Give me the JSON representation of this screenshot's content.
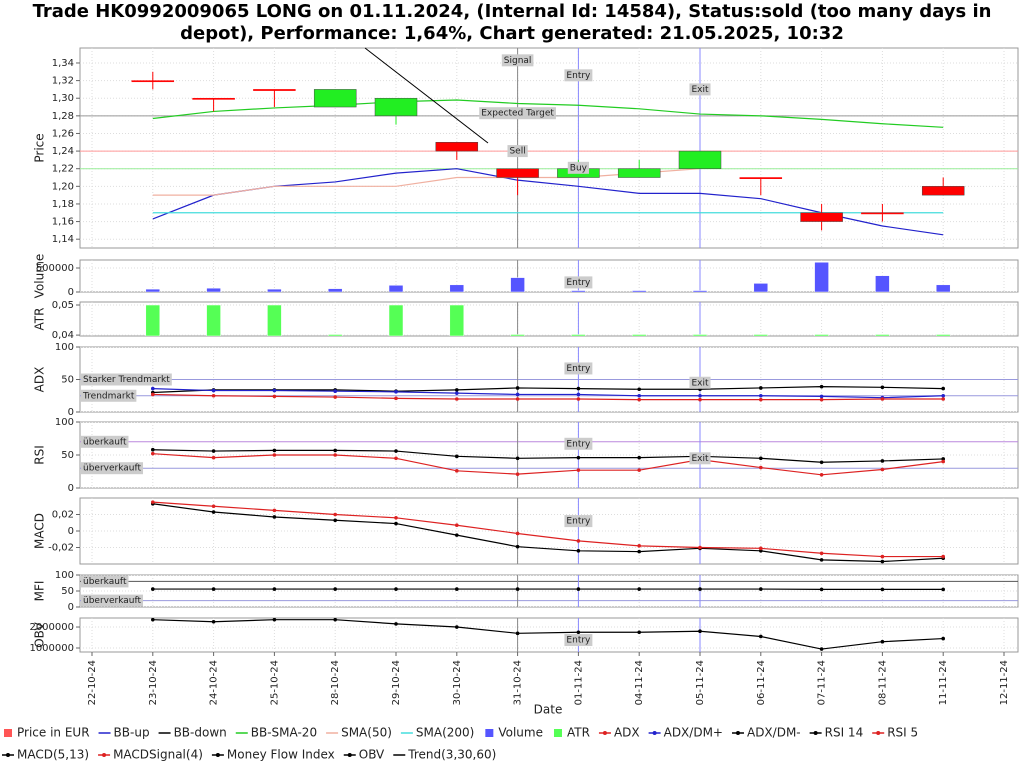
{
  "title": [
    "Trade HK0992009065 LONG on 01.11.2024, (Internal Id: 14584), Status:sold (too many days in",
    "depot), Performance: 1,64%, Chart generated: 21.05.2025, 10:32"
  ],
  "x_label": "Date",
  "categories": [
    "22-10-24",
    "23-10-24",
    "24-10-24",
    "25-10-24",
    "28-10-24",
    "29-10-24",
    "30-10-24",
    "31-10-24",
    "01-11-24",
    "04-11-24",
    "05-11-24",
    "06-11-24",
    "07-11-24",
    "08-11-24",
    "11-11-24",
    "12-11-24"
  ],
  "markers": [
    {
      "date": "31-10-24",
      "color": "#888888"
    },
    {
      "date": "01-11-24",
      "color": "#8888ff"
    },
    {
      "date": "05-11-24",
      "color": "#8888ff"
    }
  ],
  "panels": [
    {
      "type": "candlestick",
      "y_label": "Price",
      "ylim": [
        1.13,
        1.357
      ],
      "yticks": [
        {
          "value": 1.14,
          "label": "1,14"
        },
        {
          "value": 1.16,
          "label": "1,16"
        },
        {
          "value": 1.18,
          "label": "1,18"
        },
        {
          "value": 1.2,
          "label": "1,20"
        },
        {
          "value": 1.22,
          "label": "1,22"
        },
        {
          "value": 1.24,
          "label": "1,24"
        },
        {
          "value": 1.26,
          "label": "1,26"
        },
        {
          "value": 1.28,
          "label": "1,28"
        },
        {
          "value": 1.3,
          "label": "1,30"
        },
        {
          "value": 1.32,
          "label": "1,32"
        },
        {
          "value": 1.34,
          "label": "1,34"
        }
      ],
      "up_color": "#22ee22",
      "down_color": "#ff0000",
      "open": [
        null,
        1.32,
        1.3,
        1.31,
        1.29,
        1.28,
        1.25,
        1.22,
        1.21,
        1.21,
        1.22,
        1.21,
        1.17,
        1.17,
        1.2,
        null
      ],
      "close": [
        null,
        1.32,
        1.3,
        1.31,
        1.31,
        1.3,
        1.24,
        1.21,
        1.22,
        1.22,
        1.24,
        1.21,
        1.16,
        1.17,
        1.19,
        null
      ],
      "high": [
        null,
        1.33,
        1.3,
        1.31,
        1.31,
        1.3,
        1.25,
        1.22,
        1.23,
        1.23,
        1.24,
        1.21,
        1.18,
        1.18,
        1.21,
        null
      ],
      "low": [
        null,
        1.31,
        1.285,
        1.29,
        1.29,
        1.27,
        1.23,
        1.19,
        1.21,
        1.21,
        1.22,
        1.19,
        1.15,
        1.16,
        1.19,
        null
      ],
      "hlines": [
        {
          "value": 1.28,
          "color": "#999999"
        },
        {
          "value": 1.24,
          "color": "#ff9999"
        },
        {
          "value": 1.22,
          "color": "#99ee99"
        }
      ],
      "series": [
        {
          "color": "#2222cc",
          "values": [
            null,
            1.163,
            1.19,
            1.2,
            1.205,
            1.215,
            1.22,
            1.207,
            1.2,
            1.192,
            1.192,
            1.186,
            1.17,
            1.155,
            1.145,
            null
          ]
        },
        {
          "color": "#22cc22",
          "values": [
            null,
            1.277,
            1.285,
            1.289,
            1.292,
            1.296,
            1.298,
            1.294,
            1.292,
            1.288,
            1.282,
            1.28,
            1.276,
            1.271,
            1.267,
            null
          ]
        },
        {
          "color": "#f0b0a0",
          "values": [
            null,
            1.19,
            1.19,
            1.2,
            1.2,
            1.2,
            1.21,
            1.21,
            1.21,
            1.215,
            1.22,
            null,
            null,
            null,
            null,
            null
          ]
        },
        {
          "color": "#44dddd",
          "values": [
            null,
            1.17,
            1.17,
            1.17,
            1.17,
            1.17,
            1.17,
            1.17,
            1.17,
            1.17,
            1.17,
            1.17,
            1.17,
            1.17,
            1.17,
            null
          ]
        }
      ],
      "annotations": [
        {
          "text": "Signal",
          "date": "31-10-24",
          "y": 1.343
        },
        {
          "text": "Entry",
          "date": "01-11-24",
          "y": 1.326
        },
        {
          "text": "Exit",
          "date": "05-11-24",
          "y": 1.31
        },
        {
          "text": "Expected Target",
          "date": "31-10-24",
          "y": 1.283
        },
        {
          "text": "Sell",
          "date": "31-10-24",
          "y": 1.24
        },
        {
          "text": "Buy",
          "date": "01-11-24",
          "y": 1.221
        }
      ]
    },
    {
      "type": "bar",
      "y_label": "Volume",
      "ylim": [
        0,
        667000
      ],
      "yticks": [
        0,
        500000
      ],
      "hlines": [],
      "series": [
        {
          "color": "#5555ff",
          "values": [
            null,
            60000,
            80000,
            60000,
            70000,
            140000,
            150000,
            300000,
            30000,
            30000,
            30000,
            180000,
            620000,
            340000,
            150000,
            null
          ]
        }
      ],
      "annotations": [
        {
          "text": "Entry",
          "date": "01-11-24",
          "y": 200000
        }
      ]
    },
    {
      "type": "bar",
      "y_label": "ATR",
      "ylim": [
        0.0397,
        0.051
      ],
      "yticks": [
        {
          "value": 0.04,
          "label": "0,04"
        },
        {
          "value": 0.05,
          "label": "0,05"
        }
      ],
      "hlines": [],
      "series": [
        {
          "color": "#55ff55",
          "values": [
            null,
            0.05,
            0.05,
            0.05,
            0.0402,
            0.05,
            0.05,
            0.0402,
            0.0402,
            0.0402,
            0.0402,
            0.0402,
            0.0402,
            0.0402,
            0.0402,
            null
          ]
        }
      ],
      "annotations": []
    },
    {
      "type": "line",
      "y_label": "ADX",
      "ylim": [
        0,
        100
      ],
      "yticks": [
        0,
        50,
        100
      ],
      "hlines": [
        {
          "value": 50,
          "color": "#9999dd",
          "label": "Starker Trendmarkt"
        },
        {
          "value": 25,
          "color": "#9999dd",
          "label": "Trendmarkt"
        }
      ],
      "series": [
        {
          "color": "#000000",
          "dots": true,
          "values": [
            null,
            30,
            34,
            34,
            34,
            32,
            34,
            37,
            36,
            35,
            35,
            37,
            39,
            38,
            36,
            null
          ]
        },
        {
          "color": "#2222cc",
          "dots": true,
          "values": [
            null,
            36,
            33,
            33,
            32,
            31,
            29,
            27,
            27,
            25,
            25,
            25,
            24,
            22,
            25,
            null
          ]
        },
        {
          "color": "#dd2222",
          "dots": true,
          "values": [
            null,
            27,
            25,
            24,
            23,
            21,
            20,
            20,
            20,
            19,
            19,
            19,
            19,
            20,
            20,
            null
          ]
        }
      ],
      "annotations": [
        {
          "text": "Entry",
          "date": "01-11-24",
          "y": 67
        },
        {
          "text": "Exit",
          "date": "05-11-24",
          "y": 45
        }
      ]
    },
    {
      "type": "line",
      "y_label": "RSI",
      "ylim": [
        0,
        100
      ],
      "yticks": [
        0,
        50,
        100
      ],
      "hlines": [
        {
          "value": 70,
          "color": "#bb88dd",
          "label": "überkauft"
        },
        {
          "value": 30,
          "color": "#9999dd",
          "label": "überverkauft"
        }
      ],
      "series": [
        {
          "color": "#000000",
          "dots": true,
          "values": [
            null,
            58,
            56,
            57,
            57,
            56,
            48,
            45,
            46,
            46,
            48,
            45,
            39,
            41,
            44,
            null
          ]
        },
        {
          "color": "#dd2222",
          "dots": true,
          "values": [
            null,
            52,
            46,
            50,
            50,
            45,
            26,
            21,
            27,
            27,
            43,
            31,
            20,
            28,
            40,
            null
          ]
        }
      ],
      "annotations": [
        {
          "text": "Entry",
          "date": "01-11-24",
          "y": 67
        },
        {
          "text": "Exit",
          "date": "05-11-24",
          "y": 45
        }
      ]
    },
    {
      "type": "line",
      "y_label": "MACD",
      "ylim": [
        -0.04,
        0.04
      ],
      "yticks": [
        {
          "value": -0.02,
          "label": "-0,02"
        },
        0,
        {
          "value": 0.02,
          "label": "0,02"
        }
      ],
      "hlines": [],
      "series": [
        {
          "color": "#000000",
          "dots": true,
          "values": [
            null,
            0.033,
            0.023,
            0.017,
            0.013,
            0.009,
            -0.005,
            -0.019,
            -0.024,
            -0.025,
            -0.021,
            -0.024,
            -0.035,
            -0.037,
            -0.033,
            null
          ]
        },
        {
          "color": "#dd2222",
          "dots": true,
          "values": [
            null,
            0.035,
            0.03,
            0.025,
            0.02,
            0.016,
            0.007,
            -0.003,
            -0.012,
            -0.018,
            -0.02,
            -0.021,
            -0.027,
            -0.031,
            -0.031,
            null
          ]
        }
      ],
      "annotations": [
        {
          "text": "Entry",
          "date": "01-11-24",
          "y": 0.012
        }
      ]
    },
    {
      "type": "line",
      "y_label": "MFI",
      "ylim": [
        0,
        100
      ],
      "yticks": [
        0,
        50,
        100
      ],
      "hlines": [
        {
          "value": 80,
          "color": "#555555",
          "label": "überkauft"
        },
        {
          "value": 20,
          "color": "#9999dd",
          "label": "überverkauft"
        }
      ],
      "series": [
        {
          "color": "#000000",
          "dots": true,
          "values": [
            null,
            56,
            56,
            56,
            56,
            56,
            56,
            56,
            56,
            56,
            56,
            56,
            55,
            55,
            55,
            null
          ]
        }
      ],
      "annotations": []
    },
    {
      "type": "line",
      "y_label": "OBV",
      "ylim": [
        810000,
        2430000
      ],
      "yticks": [
        1000000,
        2000000
      ],
      "hlines": [],
      "series": [
        {
          "color": "#000000",
          "dots": true,
          "values": [
            null,
            2350000,
            2250000,
            2350000,
            2350000,
            2150000,
            2000000,
            1700000,
            1750000,
            1750000,
            1800000,
            1550000,
            950000,
            1300000,
            1450000,
            null
          ]
        }
      ],
      "annotations": [
        {
          "text": "Entry",
          "date": "01-11-24",
          "y": 1380000
        }
      ]
    }
  ],
  "legend": [
    {
      "name": "Price in EUR",
      "color": "#ff5555",
      "marker": "square"
    },
    {
      "name": "BB-up",
      "color": "#2222cc",
      "marker": "line"
    },
    {
      "name": "BB-down",
      "color": "#000000",
      "marker": "line"
    },
    {
      "name": "BB-SMA-20",
      "color": "#22cc22",
      "marker": "line"
    },
    {
      "name": "SMA(50)",
      "color": "#f0b0a0",
      "marker": "line"
    },
    {
      "name": "SMA(200)",
      "color": "#44dddd",
      "marker": "line"
    },
    {
      "name": "Volume",
      "color": "#5555ff",
      "marker": "square"
    },
    {
      "name": "ATR",
      "color": "#55ff55",
      "marker": "square"
    },
    {
      "name": "ADX",
      "color": "#dd2222",
      "marker": "dot"
    },
    {
      "name": "ADX/DM+",
      "color": "#2222cc",
      "marker": "dot"
    },
    {
      "name": "ADX/DM-",
      "color": "#000000",
      "marker": "dot"
    },
    {
      "name": "RSI 14",
      "color": "#000000",
      "marker": "dot"
    },
    {
      "name": "RSI 5",
      "color": "#dd2222",
      "marker": "dot"
    },
    {
      "name": "MACD(5,13)",
      "color": "#000000",
      "marker": "dot"
    },
    {
      "name": "MACDSignal(4)",
      "color": "#dd2222",
      "marker": "dot"
    },
    {
      "name": "Money Flow Index",
      "color": "#000000",
      "marker": "dot"
    },
    {
      "name": "OBV",
      "color": "#000000",
      "marker": "dot"
    },
    {
      "name": "Trend(3,30,60)",
      "color": "#000000",
      "marker": "line"
    }
  ]
}
